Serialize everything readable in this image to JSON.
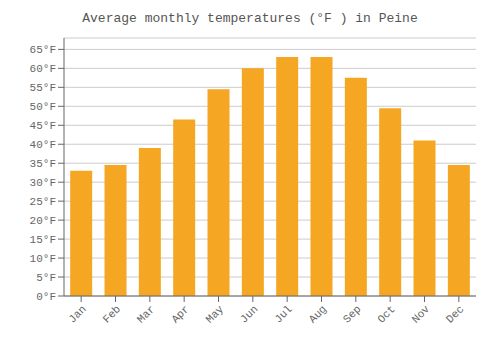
{
  "chart_data": {
    "type": "bar",
    "title": "Average monthly temperatures (°F ) in Peine",
    "categories": [
      "Jan",
      "Feb",
      "Mar",
      "Apr",
      "May",
      "Jun",
      "Jul",
      "Aug",
      "Sep",
      "Oct",
      "Nov",
      "Dec"
    ],
    "values": [
      33,
      34.5,
      39,
      46.5,
      54.5,
      60,
      63,
      63,
      57.5,
      49.5,
      41,
      34.5
    ],
    "color": "#F5A623",
    "ylim": [
      0,
      68
    ],
    "yticks": [
      {
        "value": 0,
        "label": "0°F"
      },
      {
        "value": 5,
        "label": "5°F"
      },
      {
        "value": 10,
        "label": "10°F"
      },
      {
        "value": 15,
        "label": "15°F"
      },
      {
        "value": 20,
        "label": "20°F"
      },
      {
        "value": 25,
        "label": "25°F"
      },
      {
        "value": 30,
        "label": "30°F"
      },
      {
        "value": 35,
        "label": "35°F"
      },
      {
        "value": 40,
        "label": "40°F"
      },
      {
        "value": 45,
        "label": "45°F"
      },
      {
        "value": 50,
        "label": "50°F"
      },
      {
        "value": 55,
        "label": "55°F"
      },
      {
        "value": 60,
        "label": "60°F"
      },
      {
        "value": 65,
        "label": "65°F"
      }
    ],
    "grid": true
  }
}
